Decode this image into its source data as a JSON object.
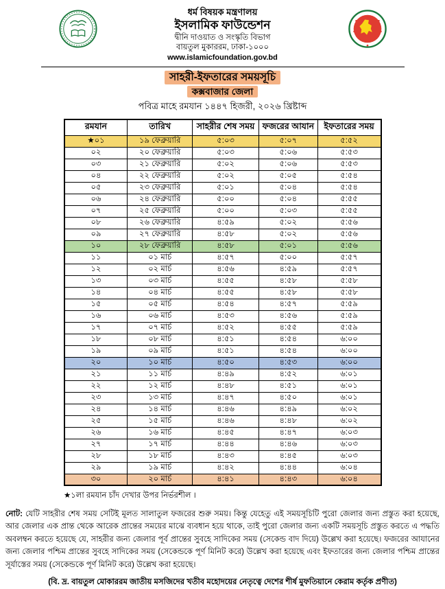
{
  "header": {
    "ministry": "ধর্ম বিষয়ক মন্ত্রণালয়",
    "org": "ইসলামিক ফাউন্ডেশন",
    "dept": "দ্বীনি দাওয়াত ও সংস্কৃতি বিভাগ",
    "address": "বায়তুল মুকাররম, ঢাকা-১০০০",
    "website": "www.islamicfoundation.gov.bd",
    "left_logo": "islamic-foundation-seal",
    "right_logo": "bangladesh-government-seal"
  },
  "title": {
    "main": "সাহরী-ইফতারের সময়সূচি",
    "district": "কক্সবাজার জেলা",
    "subtitle": "পবিত্র মাহে রমযান ১৪৪৭ হিজরী, ২০২৬ খ্রিষ্টাব্দ"
  },
  "colors": {
    "title_highlight": "#F4B183",
    "yellow": "#F5D76E",
    "green": "#B5D9A2",
    "blue": "#B0C4E4",
    "orange": "#F2C6A2",
    "logo_green": "#1B7A3D",
    "seal_red": "#E03C31",
    "seal_yellow": "#F9D616"
  },
  "table": {
    "headers": [
      "রমযান",
      "তারিখ",
      "সাহরীর শেষ সময়",
      "ফজরের আযান",
      "ইফতারের সময়"
    ],
    "rows": [
      {
        "ramadan": "★০১",
        "date": "১৯ ফেব্রুয়ারি",
        "sahri": "৫:০৩",
        "fajr": "৫:০৭",
        "iftar": "৫:৫২",
        "highlight": "yellow"
      },
      {
        "ramadan": "০২",
        "date": "২০ ফেব্রুয়ারি",
        "sahri": "৫:০৩",
        "fajr": "৫:০৬",
        "iftar": "৫:৫৩",
        "highlight": null
      },
      {
        "ramadan": "০৩",
        "date": "২১ ফেব্রুয়ারি",
        "sahri": "৫:০২",
        "fajr": "৫:০৬",
        "iftar": "৫:৫৩",
        "highlight": null
      },
      {
        "ramadan": "০৪",
        "date": "২২ ফেব্রুয়ারি",
        "sahri": "৫:০২",
        "fajr": "৫:০৫",
        "iftar": "৫:৫৪",
        "highlight": null
      },
      {
        "ramadan": "০৫",
        "date": "২৩ ফেব্রুয়ারি",
        "sahri": "৫:০১",
        "fajr": "৫:০৪",
        "iftar": "৫:৫৪",
        "highlight": null
      },
      {
        "ramadan": "০৬",
        "date": "২৪ ফেব্রুয়ারি",
        "sahri": "৫:০০",
        "fajr": "৫:০৪",
        "iftar": "৫:৫৫",
        "highlight": null
      },
      {
        "ramadan": "০৭",
        "date": "২৫ ফেব্রুয়ারি",
        "sahri": "৫:০০",
        "fajr": "৫:০৩",
        "iftar": "৫:৫৫",
        "highlight": null
      },
      {
        "ramadan": "০৮",
        "date": "২৬ ফেব্রুয়ারি",
        "sahri": "৪:৫৯",
        "fajr": "৫:০২",
        "iftar": "৫:৫৬",
        "highlight": null
      },
      {
        "ramadan": "০৯",
        "date": "২৭ ফেব্রুয়ারি",
        "sahri": "৪:৫৮",
        "fajr": "৫:০২",
        "iftar": "৫:৫৬",
        "highlight": null
      },
      {
        "ramadan": "১০",
        "date": "২৮ ফেব্রুয়ারি",
        "sahri": "৪:৫৮",
        "fajr": "৫:০১",
        "iftar": "৫:৫৬",
        "highlight": "green"
      },
      {
        "ramadan": "১১",
        "date": "০১ মার্চ",
        "sahri": "৪:৫৭",
        "fajr": "৫:০০",
        "iftar": "৫:৫৭",
        "highlight": null
      },
      {
        "ramadan": "১২",
        "date": "০২ মার্চ",
        "sahri": "৪:৫৬",
        "fajr": "৪:৫৯",
        "iftar": "৫:৫৭",
        "highlight": null
      },
      {
        "ramadan": "১৩",
        "date": "০৩ মার্চ",
        "sahri": "৪:৫৫",
        "fajr": "৪:৫৮",
        "iftar": "৫:৫৮",
        "highlight": null
      },
      {
        "ramadan": "১৪",
        "date": "০৪ মার্চ",
        "sahri": "৪:৫৫",
        "fajr": "৪:৫৮",
        "iftar": "৫:৫৮",
        "highlight": null
      },
      {
        "ramadan": "১৫",
        "date": "০৫ মার্চ",
        "sahri": "৪:৫৪",
        "fajr": "৪:৫৭",
        "iftar": "৫:৫৯",
        "highlight": null
      },
      {
        "ramadan": "১৬",
        "date": "০৬ মার্চ",
        "sahri": "৪:৫৩",
        "fajr": "৪:৫৬",
        "iftar": "৫:৫৯",
        "highlight": null
      },
      {
        "ramadan": "১৭",
        "date": "০৭ মার্চ",
        "sahri": "৪:৫২",
        "fajr": "৪:৫৫",
        "iftar": "৫:৫৯",
        "highlight": null
      },
      {
        "ramadan": "১৮",
        "date": "০৮ মার্চ",
        "sahri": "৪:৫১",
        "fajr": "৪:৫৪",
        "iftar": "৬:০০",
        "highlight": null
      },
      {
        "ramadan": "১৯",
        "date": "০৯ মার্চ",
        "sahri": "৪:৫১",
        "fajr": "৪:৫৪",
        "iftar": "৬:০০",
        "highlight": null
      },
      {
        "ramadan": "২০",
        "date": "১০ মার্চ",
        "sahri": "৪:৫০",
        "fajr": "৪:৫৩",
        "iftar": "৬:০০",
        "highlight": "blue"
      },
      {
        "ramadan": "২১",
        "date": "১১ মার্চ",
        "sahri": "৪:৪৯",
        "fajr": "৪:৫২",
        "iftar": "৬:০১",
        "highlight": null
      },
      {
        "ramadan": "২২",
        "date": "১২ মার্চ",
        "sahri": "৪:৪৮",
        "fajr": "৪:৫১",
        "iftar": "৬:০১",
        "highlight": null
      },
      {
        "ramadan": "২৩",
        "date": "১৩ মার্চ",
        "sahri": "৪:৪৭",
        "fajr": "৪:৫০",
        "iftar": "৬:০১",
        "highlight": null
      },
      {
        "ramadan": "২৪",
        "date": "১৪ মার্চ",
        "sahri": "৪:৪৬",
        "fajr": "৪:৪৯",
        "iftar": "৬:০২",
        "highlight": null
      },
      {
        "ramadan": "২৫",
        "date": "১৫ মার্চ",
        "sahri": "৪:৪৬",
        "fajr": "৪:৪৮",
        "iftar": "৬:০২",
        "highlight": null
      },
      {
        "ramadan": "২৬",
        "date": "১৬ মার্চ",
        "sahri": "৪:৪৫",
        "fajr": "৪:৪৭",
        "iftar": "৬:০৩",
        "highlight": null
      },
      {
        "ramadan": "২৭",
        "date": "১৭ মার্চ",
        "sahri": "৪:৪৪",
        "fajr": "৪:৪৬",
        "iftar": "৬:০৩",
        "highlight": null
      },
      {
        "ramadan": "২৮",
        "date": "১৮ মার্চ",
        "sahri": "৪:৪৩",
        "fajr": "৪:৪৫",
        "iftar": "৬:০৩",
        "highlight": null
      },
      {
        "ramadan": "২৯",
        "date": "১৯ মার্চ",
        "sahri": "৪:৪২",
        "fajr": "৪:৪৪",
        "iftar": "৬:০৪",
        "highlight": null
      },
      {
        "ramadan": "৩০",
        "date": "২০ মার্চ",
        "sahri": "৪:৪১",
        "fajr": "৪:৪৩",
        "iftar": "৬:০৪",
        "highlight": "orange"
      }
    ]
  },
  "footnotes": {
    "star_note": "★১লা রমযান চাঁদ দেখার উপর নির্ভরশীল ।",
    "note_label": "নোট:",
    "note_body": "যেটি সাহরীর শেষ সময় সেটিই মূলত সালাতুল ফজরের শুরু সময়। কিন্তু যেহেতু এই সময়সূচিটি পুরো জেলার জন্য প্রস্তুত করা হয়েছে, আর জেলার এক প্রান্ত থেকে আরেক প্রান্তের সময়ের মাঝে ব্যবধান হয়ে থাকে, তাই পুরো জেলার জন্য একটি সময়সূচি প্রস্তুত করতে এ পদ্ধতি অবলম্বন করতে হয়েছে যে, সাহরীর জন্য জেলার পূর্ব প্রান্তের সুবহে সাদিকের সময় (সেকেন্ড বাদ দিয়ে) উল্লেখ করা হয়েছে। ফজরের আযানের জন্য জেলার পশ্চিম প্রান্তের সুবহে সাদিকের সময় (সেকেন্ডকে পূর্ণ মিনিট করে) উল্লেখ করা হয়েছে এবং ইফতারের জন্য জেলার পশ্চিম প্রান্তের সূর্যাস্তের সময় (সেকেন্ডকে পূর্ণ মিনিট করে) উল্লেখ করা হয়েছে।",
    "bottom_note": "(বি. দ্র. বায়তুল মোকাররম জাতীয় মসজিদের খতীব মহোদয়ের নেতৃত্বে দেশের শীর্ষ মুফতিয়ানে কেরাম কর্তৃক প্রণীত)"
  }
}
